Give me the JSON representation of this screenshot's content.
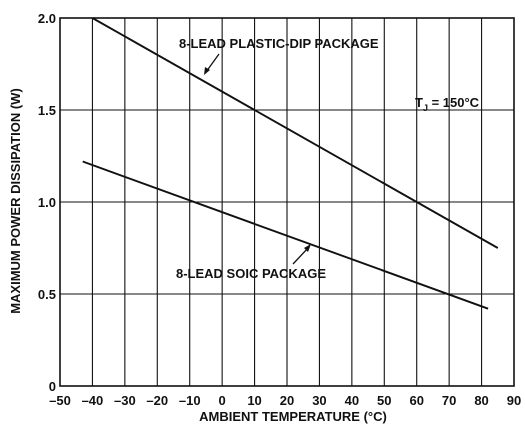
{
  "chart_data": {
    "type": "line",
    "xlabel": "AMBIENT TEMPERATURE (°C)",
    "ylabel": "MAXIMUM POWER DISSIPATION (W)",
    "xlim": [
      -50,
      90
    ],
    "ylim": [
      0,
      2.0
    ],
    "x_ticks": [
      "–50",
      "–40",
      "–30",
      "–20",
      "–10",
      "0",
      "10",
      "20",
      "30",
      "40",
      "50",
      "60",
      "70",
      "80",
      "90"
    ],
    "y_ticks": [
      "0",
      "0.5",
      "1.0",
      "1.5",
      "2.0"
    ],
    "grid": true,
    "series": [
      {
        "name": "8-LEAD PLASTIC-DIP PACKAGE",
        "x": [
          -40,
          85
        ],
        "y": [
          2.0,
          0.75
        ]
      },
      {
        "name": "8-LEAD SOIC PACKAGE",
        "x": [
          -43,
          82
        ],
        "y": [
          1.22,
          0.42
        ]
      }
    ],
    "annotations": {
      "condition_main": "T",
      "condition_sub": "J",
      "condition_rest": " = 150°C"
    }
  }
}
